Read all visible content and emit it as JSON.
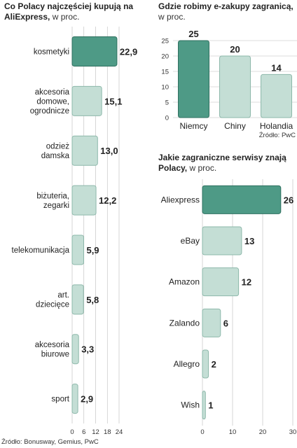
{
  "chart_data": [
    {
      "type": "bar",
      "orientation": "horizontal",
      "title": "Co Polacy najczęściej kupują na AliExpress,",
      "unit": "w proc.",
      "categories": [
        [
          "kosmetyki"
        ],
        [
          "akcesoria",
          "domowe,",
          "ogrodnicze"
        ],
        [
          "odzież",
          "damska"
        ],
        [
          "biżuteria,",
          "zegarki"
        ],
        [
          "telekomunikacja"
        ],
        [
          "art.",
          "dziecięce"
        ],
        [
          "akcesoria",
          "biurowe"
        ],
        [
          "sport"
        ]
      ],
      "values": [
        22.9,
        15.1,
        13.0,
        12.2,
        5.9,
        5.8,
        3.3,
        2.9
      ],
      "value_labels": [
        "22,9",
        "15,1",
        "13,0",
        "12,2",
        "5,9",
        "5,8",
        "3,3",
        "2,9"
      ],
      "xlim": [
        0,
        24
      ],
      "xticks": [
        0,
        6,
        12,
        18,
        24
      ],
      "highlight_index": 0,
      "source": "Źródło: Bonusway, Gemius, PwC"
    },
    {
      "type": "bar",
      "orientation": "vertical",
      "title": "Gdzie robimy e-zakupy zagranicą,",
      "unit": "w proc.",
      "categories": [
        "Niemcy",
        "Chiny",
        "Holandia"
      ],
      "values": [
        25,
        20,
        14
      ],
      "value_labels": [
        "25",
        "20",
        "14"
      ],
      "ylim": [
        0,
        25
      ],
      "yticks": [
        0,
        5,
        10,
        15,
        20,
        25
      ],
      "highlight_index": 0,
      "source": "Źródło: PwC"
    },
    {
      "type": "bar",
      "orientation": "horizontal",
      "title": "Jakie zagraniczne serwisy znają Polacy,",
      "unit": "w proc.",
      "categories": [
        "Aliexpress",
        "eBay",
        "Amazon",
        "Zalando",
        "Allegro",
        "Wish"
      ],
      "values": [
        26,
        13,
        12,
        6,
        2,
        1
      ],
      "value_labels": [
        "26",
        "13",
        "12",
        "6",
        "2",
        "1"
      ],
      "xlim": [
        0,
        30
      ],
      "xticks": [
        0,
        10,
        20,
        30
      ],
      "highlight_index": 0
    }
  ],
  "colors": {
    "highlight": "#4e9a86",
    "highlight_stroke": "#2f7060",
    "bar": "#c4ded5",
    "bar_stroke": "#8db8aa",
    "grid": "#bbbbbb",
    "axis": "#888888"
  }
}
